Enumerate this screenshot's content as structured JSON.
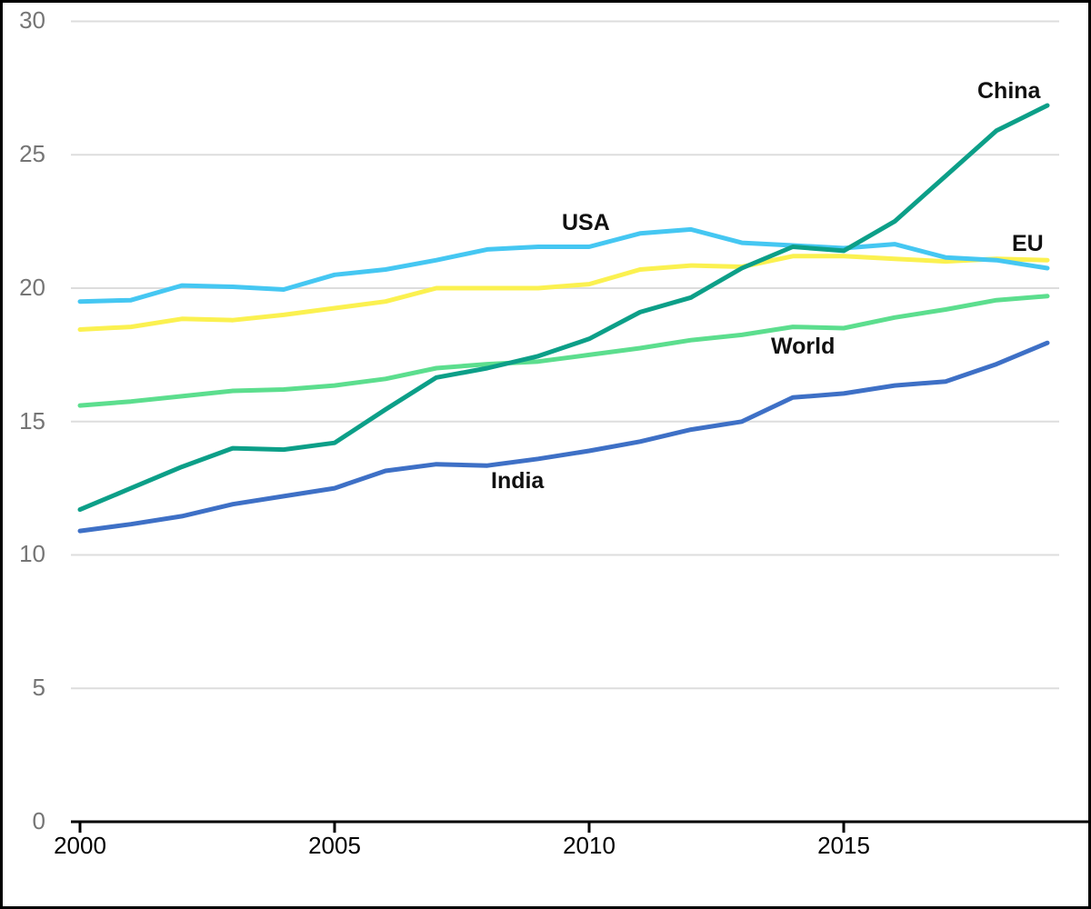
{
  "chart_data": {
    "type": "line",
    "title": "",
    "xlabel": "",
    "ylabel": "",
    "xlim": [
      2000,
      2019
    ],
    "ylim": [
      0,
      30
    ],
    "grid": true,
    "legend_position": "inline-series-labels",
    "x": [
      2000,
      2001,
      2002,
      2003,
      2004,
      2005,
      2006,
      2007,
      2008,
      2009,
      2010,
      2011,
      2012,
      2013,
      2014,
      2015,
      2016,
      2017,
      2018,
      2019
    ],
    "xticks": [
      2000,
      2005,
      2010,
      2015
    ],
    "xtick_labels": [
      "2000",
      "2005",
      "2010",
      "2015"
    ],
    "yticks": [
      30,
      25,
      20,
      15,
      10,
      5,
      0
    ],
    "ytick_labels": [
      "30",
      "25",
      "20",
      "15",
      "10",
      "5",
      "0"
    ],
    "series": [
      {
        "name": "World",
        "color": "#5cde8e",
        "values": [
          15.6,
          15.75,
          15.95,
          16.15,
          16.2,
          16.35,
          16.6,
          17.0,
          17.15,
          17.25,
          17.5,
          17.75,
          18.05,
          18.25,
          18.55,
          18.5,
          18.9,
          19.2,
          19.55,
          19.7
        ]
      },
      {
        "name": "EU",
        "color": "#fbf150",
        "values": [
          18.45,
          18.55,
          18.85,
          18.8,
          19.0,
          19.25,
          19.5,
          20.0,
          20.0,
          20.0,
          20.15,
          20.7,
          20.85,
          20.8,
          21.2,
          21.2,
          21.1,
          21.0,
          21.1,
          21.05
        ]
      },
      {
        "name": "USA",
        "color": "#45c7f2",
        "values": [
          19.5,
          19.55,
          20.1,
          20.05,
          19.95,
          20.5,
          20.7,
          21.05,
          21.45,
          21.55,
          21.55,
          22.05,
          22.2,
          21.7,
          21.6,
          21.5,
          21.65,
          21.15,
          21.05,
          20.75
        ]
      },
      {
        "name": "India",
        "color": "#3e70c6",
        "values": [
          10.9,
          11.15,
          11.45,
          11.9,
          12.2,
          12.5,
          13.15,
          13.4,
          13.35,
          13.6,
          13.9,
          14.25,
          14.7,
          15.0,
          15.9,
          16.05,
          16.35,
          16.5,
          17.15,
          17.95
        ]
      },
      {
        "name": "China",
        "color": "#0c9f88",
        "values": [
          11.7,
          12.5,
          13.3,
          14.0,
          13.95,
          14.2,
          15.45,
          16.65,
          17.0,
          17.45,
          18.1,
          19.1,
          19.65,
          20.75,
          21.55,
          21.4,
          22.5,
          24.2,
          25.9,
          26.85
        ]
      }
    ]
  },
  "colors": {
    "background": "#ffffff",
    "frame_border": "#000000",
    "gridline": "#dddddd",
    "axis_line": "#000000",
    "y_tick_label": "#757575",
    "x_tick_label": "#000000",
    "series_label": "#111111"
  }
}
